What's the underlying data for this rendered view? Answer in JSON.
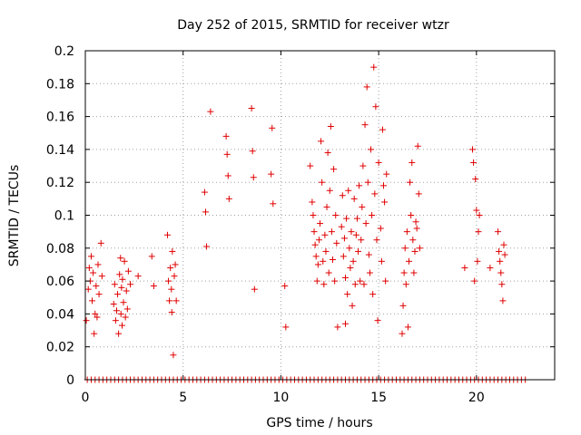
{
  "chart_data": {
    "type": "scatter",
    "title": "Day 252 of 2015, SRMTID for receiver wtzr",
    "xlabel": "GPS time / hours",
    "ylabel": "SRMTID / TECUs",
    "xlim": [
      0,
      24
    ],
    "ylim": [
      0,
      0.2
    ],
    "xticks": [
      "0",
      "5",
      "10",
      "15",
      "20"
    ],
    "yticks": [
      "0",
      "0.02",
      "0.04",
      "0.06",
      "0.08",
      "0.1",
      "0.12",
      "0.14",
      "0.16",
      "0.18",
      "0.2"
    ],
    "grid": true,
    "marker": "+",
    "colors": {
      "series": "#e00000",
      "grid": "#a0a0a0",
      "axis": "#000000"
    },
    "series": [
      {
        "name": "SRMTID",
        "points": [
          [
            0.05,
            0.036
          ],
          [
            0.15,
            0.055
          ],
          [
            0.2,
            0.068
          ],
          [
            0.25,
            0.06
          ],
          [
            0.3,
            0.075
          ],
          [
            0.35,
            0.048
          ],
          [
            0.4,
            0.065
          ],
          [
            0.45,
            0.028
          ],
          [
            0.5,
            0.04
          ],
          [
            0.55,
            0.057
          ],
          [
            0.6,
            0.038
          ],
          [
            0.65,
            0.07
          ],
          [
            0.7,
            0.052
          ],
          [
            0.8,
            0.083
          ],
          [
            0.85,
            0.063
          ],
          [
            1.45,
            0.046
          ],
          [
            1.5,
            0.058
          ],
          [
            1.55,
            0.036
          ],
          [
            1.6,
            0.042
          ],
          [
            1.65,
            0.052
          ],
          [
            1.7,
            0.028
          ],
          [
            1.75,
            0.064
          ],
          [
            1.8,
            0.074
          ],
          [
            1.82,
            0.04
          ],
          [
            1.85,
            0.056
          ],
          [
            1.88,
            0.033
          ],
          [
            1.9,
            0.061
          ],
          [
            1.95,
            0.047
          ],
          [
            2.0,
            0.072
          ],
          [
            2.05,
            0.038
          ],
          [
            2.1,
            0.054
          ],
          [
            2.15,
            0.043
          ],
          [
            2.2,
            0.066
          ],
          [
            2.3,
            0.058
          ],
          [
            2.7,
            0.063
          ],
          [
            3.4,
            0.075
          ],
          [
            3.5,
            0.057
          ],
          [
            4.2,
            0.088
          ],
          [
            4.25,
            0.06
          ],
          [
            4.3,
            0.048
          ],
          [
            4.35,
            0.068
          ],
          [
            4.4,
            0.055
          ],
          [
            4.42,
            0.041
          ],
          [
            4.45,
            0.078
          ],
          [
            4.5,
            0.015
          ],
          [
            4.55,
            0.063
          ],
          [
            4.6,
            0.07
          ],
          [
            4.65,
            0.048
          ],
          [
            6.1,
            0.114
          ],
          [
            6.15,
            0.102
          ],
          [
            6.2,
            0.081
          ],
          [
            6.4,
            0.163
          ],
          [
            7.2,
            0.148
          ],
          [
            7.25,
            0.137
          ],
          [
            7.3,
            0.124
          ],
          [
            7.35,
            0.11
          ],
          [
            8.5,
            0.165
          ],
          [
            8.55,
            0.139
          ],
          [
            8.6,
            0.123
          ],
          [
            8.65,
            0.055
          ],
          [
            9.5,
            0.125
          ],
          [
            9.55,
            0.153
          ],
          [
            9.6,
            0.107
          ],
          [
            10.2,
            0.057
          ],
          [
            10.25,
            0.032
          ],
          [
            11.5,
            0.13
          ],
          [
            11.6,
            0.108
          ],
          [
            11.65,
            0.1
          ],
          [
            11.7,
            0.09
          ],
          [
            11.75,
            0.082
          ],
          [
            11.8,
            0.075
          ],
          [
            11.85,
            0.06
          ],
          [
            11.9,
            0.07
          ],
          [
            11.95,
            0.085
          ],
          [
            12.0,
            0.095
          ],
          [
            12.05,
            0.145
          ],
          [
            12.1,
            0.12
          ],
          [
            12.15,
            0.072
          ],
          [
            12.2,
            0.058
          ],
          [
            12.25,
            0.088
          ],
          [
            12.3,
            0.078
          ],
          [
            12.35,
            0.105
          ],
          [
            12.4,
            0.138
          ],
          [
            12.45,
            0.065
          ],
          [
            12.5,
            0.115
          ],
          [
            12.55,
            0.154
          ],
          [
            12.6,
            0.09
          ],
          [
            12.65,
            0.073
          ],
          [
            12.7,
            0.128
          ],
          [
            12.75,
            0.06
          ],
          [
            12.8,
            0.1
          ],
          [
            12.85,
            0.083
          ],
          [
            12.9,
            0.032
          ],
          [
            13.1,
            0.093
          ],
          [
            13.15,
            0.112
          ],
          [
            13.2,
            0.075
          ],
          [
            13.25,
            0.086
          ],
          [
            13.3,
            0.062
          ],
          [
            13.35,
            0.098
          ],
          [
            13.4,
            0.052
          ],
          [
            13.45,
            0.115
          ],
          [
            13.5,
            0.08
          ],
          [
            13.55,
            0.068
          ],
          [
            13.6,
            0.09
          ],
          [
            13.65,
            0.045
          ],
          [
            13.7,
            0.072
          ],
          [
            13.75,
            0.11
          ],
          [
            13.8,
            0.058
          ],
          [
            13.85,
            0.088
          ],
          [
            13.9,
            0.098
          ],
          [
            13.95,
            0.078
          ],
          [
            14.0,
            0.118
          ],
          [
            14.05,
            0.06
          ],
          [
            13.3,
            0.034
          ],
          [
            14.1,
            0.085
          ],
          [
            14.15,
            0.105
          ],
          [
            14.2,
            0.13
          ],
          [
            14.25,
            0.058
          ],
          [
            14.3,
            0.155
          ],
          [
            14.35,
            0.095
          ],
          [
            14.4,
            0.178
          ],
          [
            14.45,
            0.12
          ],
          [
            14.5,
            0.076
          ],
          [
            14.55,
            0.065
          ],
          [
            14.6,
            0.14
          ],
          [
            14.65,
            0.1
          ],
          [
            14.7,
            0.052
          ],
          [
            14.75,
            0.19
          ],
          [
            14.8,
            0.113
          ],
          [
            14.85,
            0.166
          ],
          [
            14.9,
            0.085
          ],
          [
            14.95,
            0.036
          ],
          [
            15.0,
            0.132
          ],
          [
            15.1,
            0.092
          ],
          [
            15.15,
            0.072
          ],
          [
            15.2,
            0.152
          ],
          [
            15.25,
            0.118
          ],
          [
            15.3,
            0.108
          ],
          [
            15.35,
            0.06
          ],
          [
            15.4,
            0.125
          ],
          [
            16.2,
            0.028
          ],
          [
            16.25,
            0.045
          ],
          [
            16.3,
            0.065
          ],
          [
            16.35,
            0.08
          ],
          [
            16.4,
            0.058
          ],
          [
            16.45,
            0.09
          ],
          [
            16.5,
            0.032
          ],
          [
            16.55,
            0.072
          ],
          [
            16.6,
            0.12
          ],
          [
            16.65,
            0.1
          ],
          [
            16.7,
            0.132
          ],
          [
            16.75,
            0.085
          ],
          [
            16.8,
            0.065
          ],
          [
            16.85,
            0.078
          ],
          [
            16.9,
            0.096
          ],
          [
            16.95,
            0.092
          ],
          [
            17.0,
            0.142
          ],
          [
            17.05,
            0.113
          ],
          [
            17.1,
            0.08
          ],
          [
            19.4,
            0.068
          ],
          [
            19.8,
            0.14
          ],
          [
            19.85,
            0.132
          ],
          [
            19.9,
            0.06
          ],
          [
            19.95,
            0.122
          ],
          [
            20.0,
            0.103
          ],
          [
            20.05,
            0.072
          ],
          [
            20.1,
            0.09
          ],
          [
            20.15,
            0.1
          ],
          [
            20.7,
            0.068
          ],
          [
            21.1,
            0.09
          ],
          [
            21.15,
            0.078
          ],
          [
            21.2,
            0.072
          ],
          [
            21.25,
            0.065
          ],
          [
            21.3,
            0.058
          ],
          [
            21.35,
            0.048
          ],
          [
            21.4,
            0.082
          ],
          [
            21.45,
            0.076
          ]
        ],
        "zero_points_x": [
          0.1,
          0.3,
          0.5,
          0.7,
          0.9,
          1.1,
          1.3,
          1.5,
          1.7,
          1.9,
          2.1,
          2.3,
          2.5,
          2.7,
          2.9,
          3.1,
          3.3,
          3.5,
          3.7,
          3.9,
          4.1,
          4.3,
          4.5,
          4.7,
          4.9,
          5.1,
          5.3,
          5.5,
          5.7,
          5.9,
          6.1,
          6.3,
          6.5,
          6.7,
          6.9,
          7.1,
          7.3,
          7.5,
          7.7,
          7.9,
          8.1,
          8.3,
          8.5,
          8.7,
          8.9,
          9.1,
          9.3,
          9.5,
          9.7,
          9.9,
          10.1,
          10.3,
          10.5,
          10.7,
          10.9,
          11.1,
          11.3,
          11.5,
          11.7,
          11.9,
          12.1,
          12.3,
          12.5,
          12.7,
          12.9,
          13.1,
          13.3,
          13.5,
          13.7,
          13.9,
          14.1,
          14.3,
          14.5,
          14.7,
          14.9,
          15.1,
          15.3,
          15.5,
          15.7,
          15.9,
          16.1,
          16.3,
          16.5,
          16.7,
          16.9,
          17.1,
          17.3,
          17.5,
          17.7,
          17.9,
          18.1,
          18.3,
          18.5,
          18.7,
          18.9,
          19.1,
          19.3,
          19.5,
          19.7,
          19.9,
          20.1,
          20.3,
          20.5,
          20.7,
          20.9,
          21.1,
          21.3,
          21.5,
          21.7,
          21.9,
          22.1,
          22.3,
          22.5
        ]
      }
    ]
  }
}
